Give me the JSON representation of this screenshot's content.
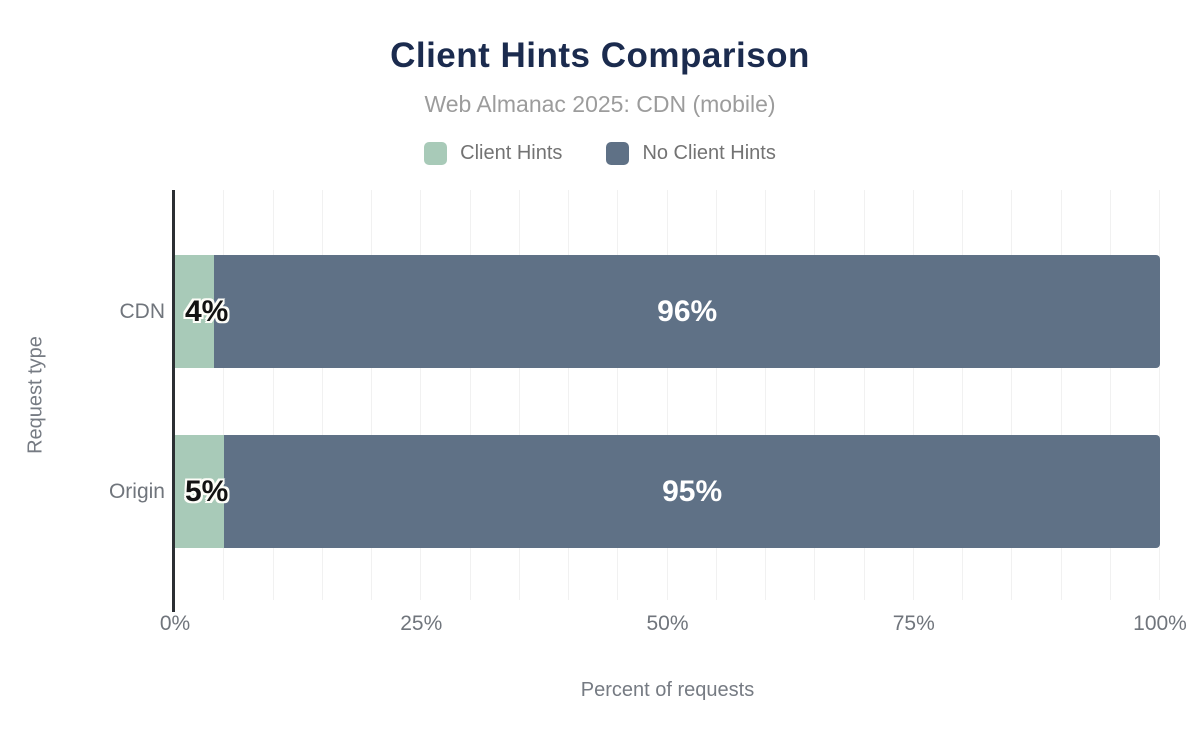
{
  "chart": {
    "title": "Client Hints Comparison",
    "subtitle": "Web Almanac 2025: CDN (mobile)",
    "xlabel": "Percent of requests",
    "ylabel": "Request type",
    "colors": {
      "title": "#1b2b4e",
      "client_hints": "#a8cab8",
      "no_client_hints": "#5f7186",
      "axis_line": "#2b2f33",
      "gridline": "#f1f1f1"
    }
  },
  "chart_data": {
    "type": "bar",
    "orientation": "horizontal",
    "stacked": true,
    "title": "Client Hints Comparison",
    "subtitle": "Web Almanac 2025: CDN (mobile)",
    "xlabel": "Percent of requests",
    "ylabel": "Request type",
    "categories": [
      "CDN",
      "Origin"
    ],
    "series": [
      {
        "name": "Client Hints",
        "color": "#a8cab8",
        "values": [
          4,
          5
        ]
      },
      {
        "name": "No Client Hints",
        "color": "#5f7186",
        "values": [
          96,
          95
        ]
      }
    ],
    "value_labels": [
      [
        "4%",
        "96%"
      ],
      [
        "5%",
        "95%"
      ]
    ],
    "x_ticks": [
      {
        "label": "0%",
        "value": 0
      },
      {
        "label": "25%",
        "value": 25
      },
      {
        "label": "50%",
        "value": 50
      },
      {
        "label": "75%",
        "value": 75
      },
      {
        "label": "100%",
        "value": 100
      }
    ],
    "xlim": [
      0,
      100
    ],
    "grid": true,
    "grid_interval": 5,
    "legend_position": "top",
    "legend": [
      {
        "label": "Client Hints",
        "color": "#a8cab8"
      },
      {
        "label": "No Client Hints",
        "color": "#5f7186"
      }
    ]
  }
}
